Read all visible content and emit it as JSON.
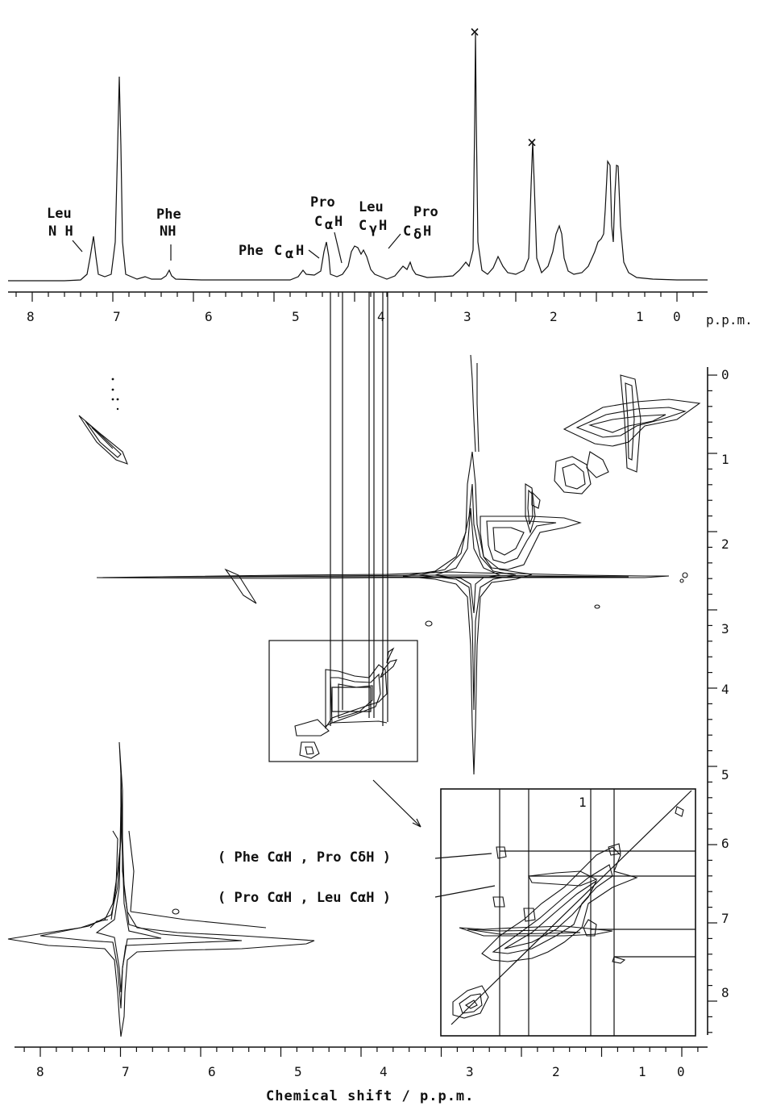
{
  "peak_labels": {
    "leu_nh_1": "Leu",
    "leu_nh_2": "N H",
    "phe_nh_1": "Phe",
    "phe_nh_2": "NH",
    "phe_cah_1": "Phe",
    "phe_cah_2": "C",
    "pro_cah_1": "Pro",
    "pro_cah_2": "C",
    "leu_cgh_1": "Leu",
    "leu_cgh_2": "C",
    "pro_cdh_1": "Pro",
    "pro_cdh_2": "C",
    "sub_alpha": "α",
    "sub_gamma": "γ",
    "sub_delta": "δ",
    "h": "H"
  },
  "solvent_marks": [
    "×",
    "×"
  ],
  "ppm_unit": "p.p.m.",
  "x_ticks_top": [
    "8",
    "7",
    "6",
    "5",
    "4",
    "3",
    "2",
    "1",
    "0"
  ],
  "x_ticks_bottom": [
    "8",
    "7",
    "6",
    "5",
    "4",
    "3",
    "2",
    "1",
    "0"
  ],
  "y_ticks": [
    "0",
    "1",
    "2",
    "3",
    "4",
    "5",
    "6",
    "7",
    "8"
  ],
  "crosspeak_labels": {
    "phe_pro": "( Phe   CαH , Pro  CδH )",
    "pro_leu": "( Pro   CαH , Leu  CαH )"
  },
  "x_axis_title": "Chemical shift / p.p.m.",
  "inset_tick": "1"
}
